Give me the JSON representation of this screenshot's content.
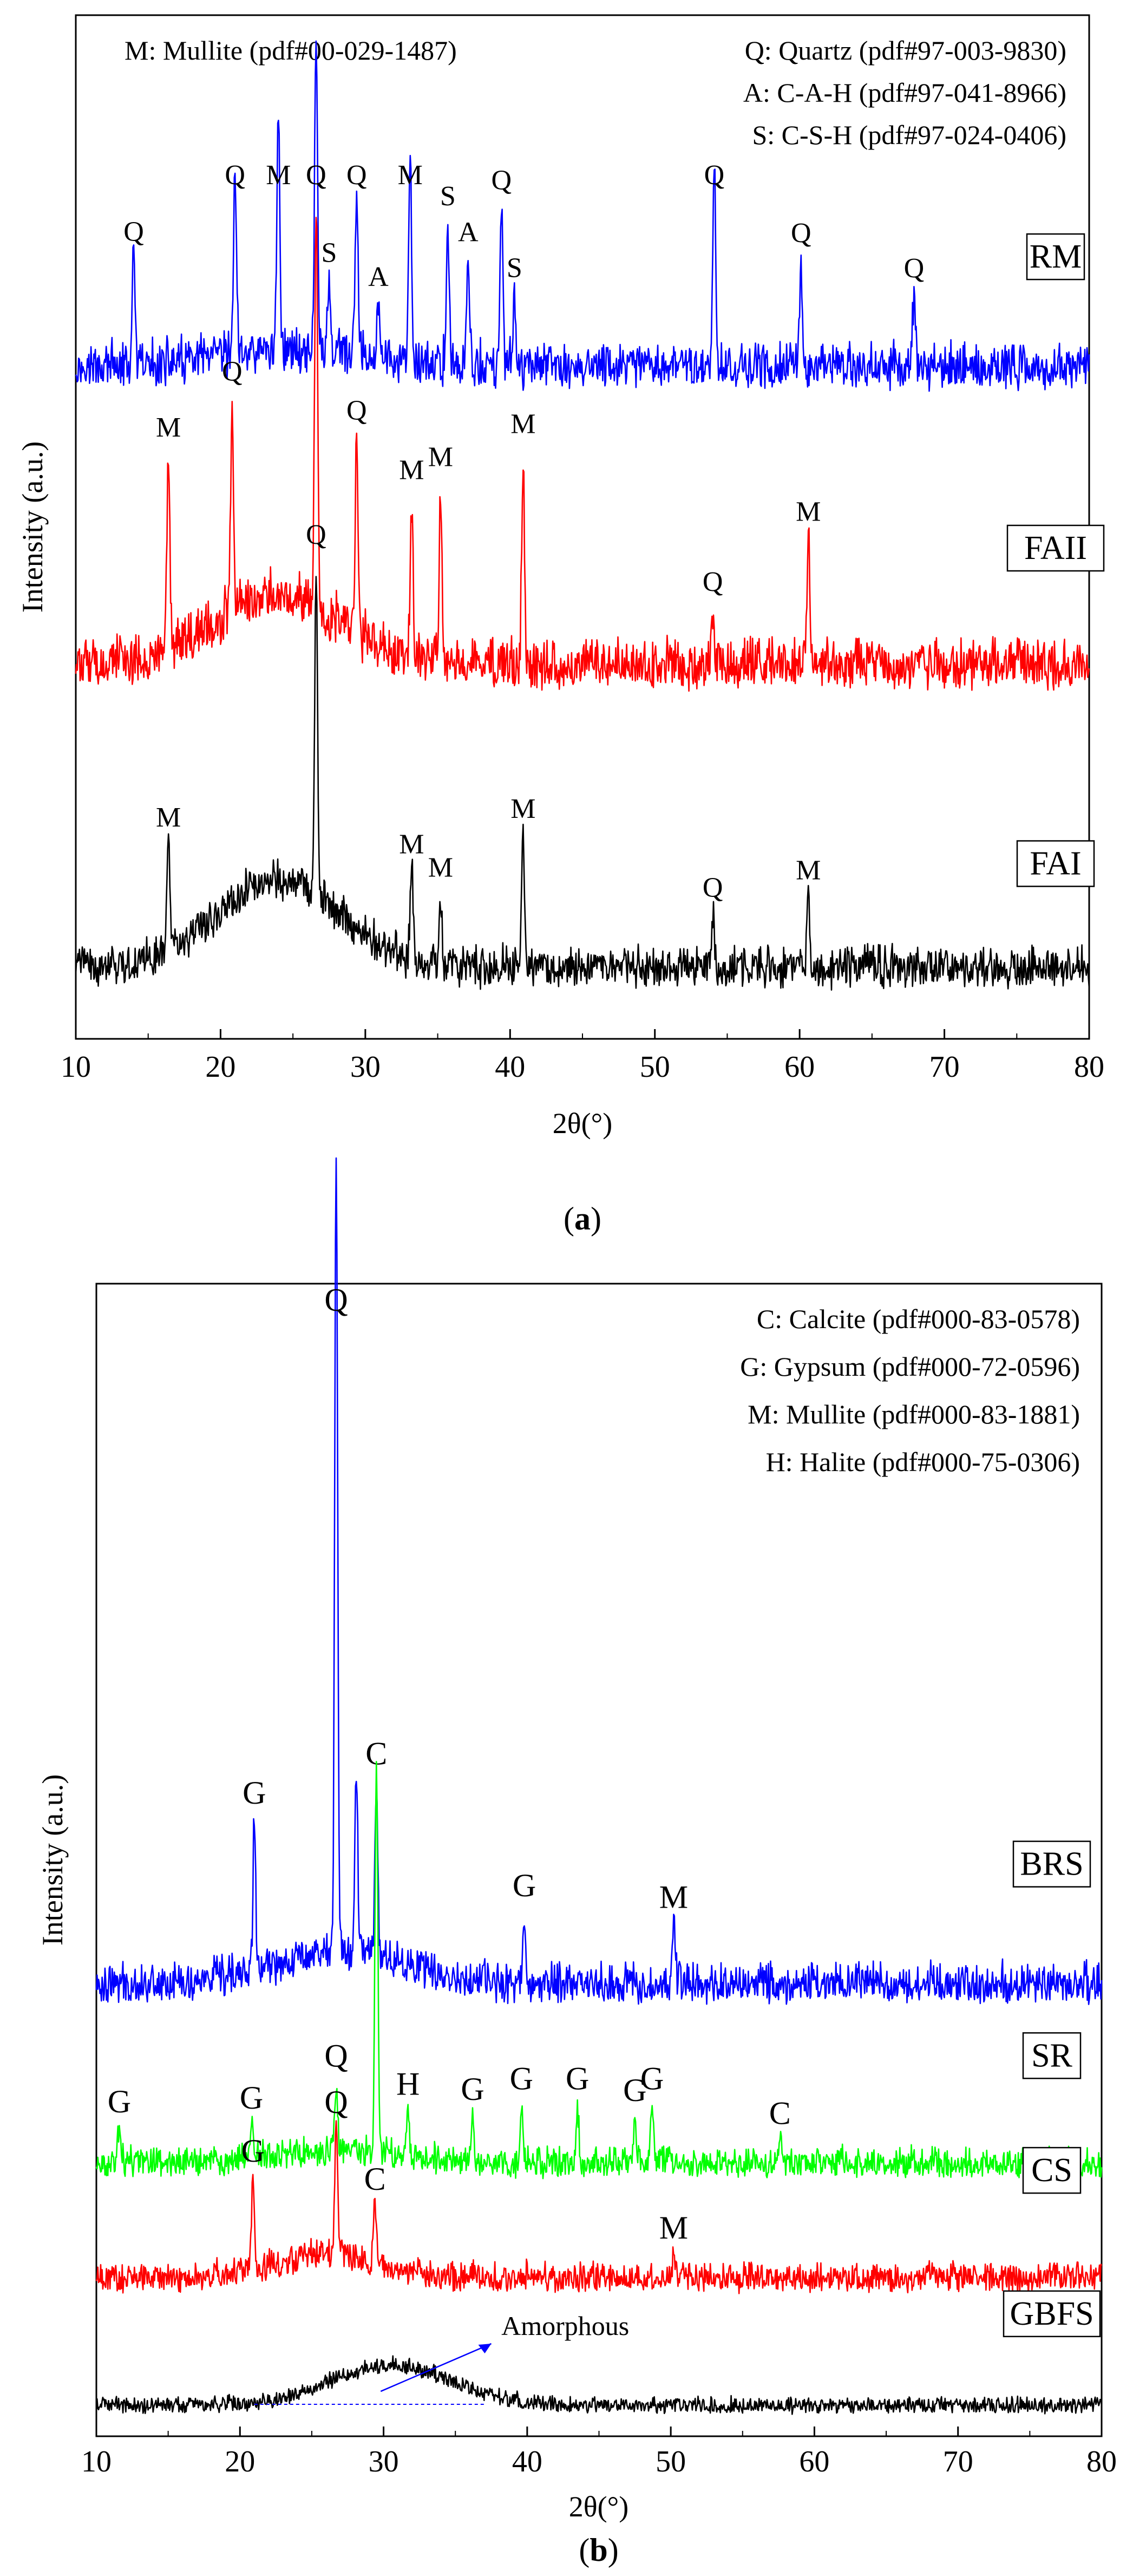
{
  "chart_data": [
    {
      "type": "line",
      "panel": "a",
      "caption": "(a)",
      "caption_prefix": "(",
      "caption_letter": "a",
      "caption_suffix": ")",
      "xlabel": "2θ(°)",
      "ylabel": "Intensity (a.u.)",
      "xlim": [
        10,
        80
      ],
      "xticks": [
        10,
        20,
        30,
        40,
        50,
        60,
        70,
        80
      ],
      "legend": [
        "M: Mullite (pdf#00-029-1487)",
        "Q: Quartz (pdf#97-003-9830)",
        "A: C-A-H (pdf#97-041-8966)",
        "S: C-S-H (pdf#97-024-0406)"
      ],
      "series": [
        {
          "name": "RM",
          "color": "#0000ff",
          "baseline": 0.76,
          "noise": 0.045,
          "hump": {
            "center": 25,
            "width": 7,
            "height": 0.02
          },
          "peaks": [
            {
              "x": 14.0,
              "h": 0.12,
              "label": "Q"
            },
            {
              "x": 21.0,
              "h": 0.22,
              "label": "Q"
            },
            {
              "x": 24.0,
              "h": 0.28,
              "label": "M"
            },
            {
              "x": 26.6,
              "h": 0.36,
              "label": "Q"
            },
            {
              "x": 27.5,
              "h": 0.08,
              "label": "S"
            },
            {
              "x": 29.4,
              "h": 0.18,
              "label": "Q"
            },
            {
              "x": 30.9,
              "h": 0.06,
              "label": "A"
            },
            {
              "x": 33.1,
              "h": 0.22,
              "label": "M"
            },
            {
              "x": 35.7,
              "h": 0.16,
              "label": "S"
            },
            {
              "x": 37.1,
              "h": 0.12,
              "label": "A"
            },
            {
              "x": 39.4,
              "h": 0.18,
              "label": "Q"
            },
            {
              "x": 40.3,
              "h": 0.08,
              "label": "S"
            },
            {
              "x": 54.1,
              "h": 0.24,
              "label": "Q"
            },
            {
              "x": 60.1,
              "h": 0.12,
              "label": "Q"
            },
            {
              "x": 67.9,
              "h": 0.08,
              "label": "Q"
            }
          ]
        },
        {
          "name": "FAII",
          "color": "#ff0000",
          "baseline": 0.42,
          "noise": 0.05,
          "hump": {
            "center": 24,
            "width": 6,
            "height": 0.08
          },
          "peaks": [
            {
              "x": 16.4,
              "h": 0.22,
              "label": "M"
            },
            {
              "x": 20.8,
              "h": 0.24,
              "label": "Q"
            },
            {
              "x": 26.6,
              "h": 0.46,
              "label": "Q"
            },
            {
              "x": 29.4,
              "h": 0.22,
              "label": "Q"
            },
            {
              "x": 33.2,
              "h": 0.18,
              "label": "M"
            },
            {
              "x": 35.2,
              "h": 0.2,
              "label": "M"
            },
            {
              "x": 40.9,
              "h": 0.24,
              "label": "M"
            },
            {
              "x": 54.0,
              "h": 0.06,
              "label": "Q"
            },
            {
              "x": 60.6,
              "h": 0.14,
              "label": "M"
            }
          ]
        },
        {
          "name": "FAI",
          "color": "#000000",
          "baseline": 0.075,
          "noise": 0.04,
          "hump": {
            "center": 24,
            "width": 6,
            "height": 0.1
          },
          "peaks": [
            {
              "x": 16.4,
              "h": 0.12,
              "label": "M"
            },
            {
              "x": 26.6,
              "h": 0.38,
              "label": "Q"
            },
            {
              "x": 33.2,
              "h": 0.1,
              "label": "M"
            },
            {
              "x": 35.2,
              "h": 0.08,
              "label": "M"
            },
            {
              "x": 40.9,
              "h": 0.15,
              "label": "M"
            },
            {
              "x": 54.0,
              "h": 0.06,
              "label": "Q"
            },
            {
              "x": 60.6,
              "h": 0.08,
              "label": "M"
            }
          ]
        }
      ]
    },
    {
      "type": "line",
      "panel": "b",
      "caption": "(b)",
      "caption_prefix": "(",
      "caption_letter": "b",
      "caption_suffix": ")",
      "xlabel": "2θ(°)",
      "ylabel": "Intensity (a.u.)",
      "xlim": [
        10,
        80
      ],
      "xticks": [
        10,
        20,
        30,
        40,
        50,
        60,
        70,
        80
      ],
      "legend": [
        "C: Calcite (pdf#000-83-0578)",
        "G: Gypsum (pdf#000-72-0596)",
        "M: Mullite (pdf#000-83-1881)",
        "H: Halite (pdf#000-75-0306)"
      ],
      "annotation": "Amorphous",
      "series": [
        {
          "name": "BRS",
          "color": "#0000ff",
          "baseline": 0.39,
          "noise": 0.03,
          "hump": {
            "center": 27,
            "width": 6,
            "height": 0.03
          },
          "peaks": [
            {
              "x": 21.0,
              "h": 0.13,
              "label": "G"
            },
            {
              "x": 26.7,
              "h": 0.7,
              "label": "Q"
            },
            {
              "x": 28.1,
              "h": 0.16,
              "label": ""
            },
            {
              "x": 29.5,
              "h": 0.15,
              "label": "C"
            },
            {
              "x": 39.8,
              "h": 0.06,
              "label": "G"
            },
            {
              "x": 50.2,
              "h": 0.05,
              "label": "M"
            }
          ]
        },
        {
          "name": "SR",
          "color": "#00ff00",
          "baseline": 0.235,
          "noise": 0.022,
          "hump": {
            "center": 27,
            "width": 6,
            "height": 0.01
          },
          "peaks": [
            {
              "x": 11.6,
              "h": 0.03,
              "label": "G"
            },
            {
              "x": 20.8,
              "h": 0.03,
              "label": "G"
            },
            {
              "x": 26.7,
              "h": 0.06,
              "label": "Q"
            },
            {
              "x": 29.5,
              "h": 0.34,
              "label": ""
            },
            {
              "x": 31.7,
              "h": 0.04,
              "label": "H"
            },
            {
              "x": 36.2,
              "h": 0.04,
              "label": "G"
            },
            {
              "x": 39.6,
              "h": 0.05,
              "label": "G"
            },
            {
              "x": 43.5,
              "h": 0.05,
              "label": "G"
            },
            {
              "x": 47.5,
              "h": 0.04,
              "label": "G"
            },
            {
              "x": 48.7,
              "h": 0.05,
              "label": "G"
            },
            {
              "x": 57.6,
              "h": 0.02,
              "label": "C"
            }
          ]
        },
        {
          "name": "CS",
          "color": "#ff0000",
          "baseline": 0.135,
          "noise": 0.022,
          "hump": {
            "center": 26,
            "width": 5,
            "height": 0.02
          },
          "peaks": [
            {
              "x": 20.9,
              "h": 0.08,
              "label": "G"
            },
            {
              "x": 26.7,
              "h": 0.11,
              "label": "Q"
            },
            {
              "x": 29.4,
              "h": 0.05,
              "label": "C"
            },
            {
              "x": 50.2,
              "h": 0.02,
              "label": "M"
            }
          ]
        },
        {
          "name": "GBFS",
          "color": "#000000",
          "baseline": 0.025,
          "noise": 0.012,
          "hump": {
            "center": 30.5,
            "width": 6,
            "height": 0.035
          },
          "peaks": []
        }
      ]
    }
  ]
}
